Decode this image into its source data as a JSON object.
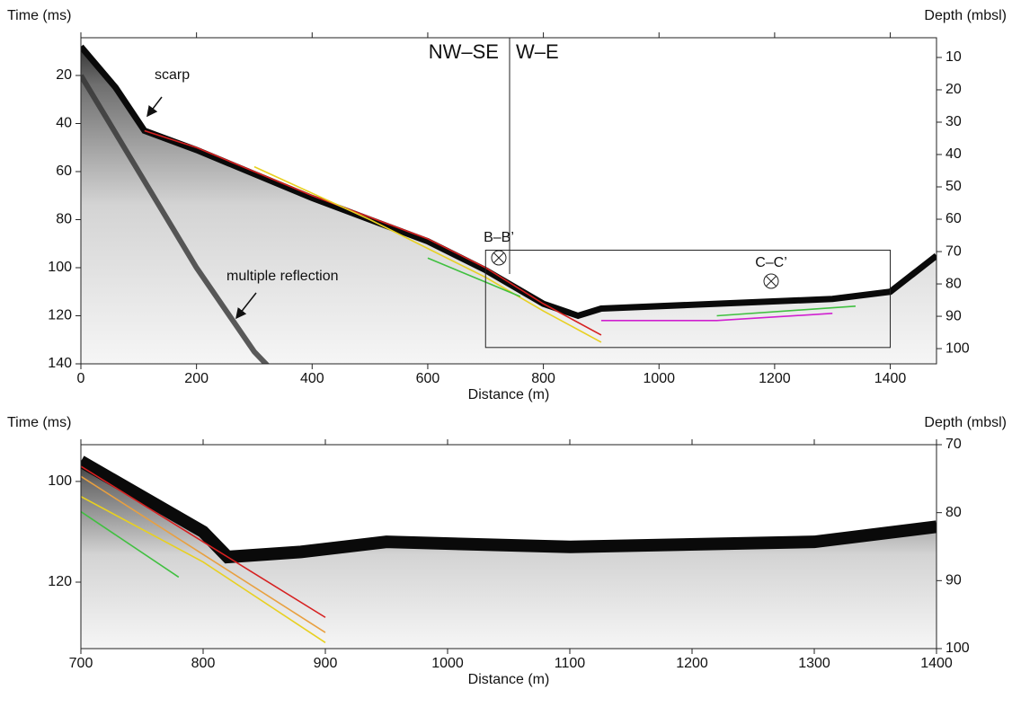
{
  "chart_data": [
    {
      "type": "seismic-profile",
      "x_label": "Distance (m)",
      "y_label": "Time (ms)",
      "y2_label": "Depth (mbsl)",
      "xlim": [
        0,
        1480
      ],
      "xticks": [
        0,
        200,
        400,
        600,
        800,
        1000,
        1200,
        1400
      ],
      "ylim": [
        4.3,
        140
      ],
      "yticks": [
        20,
        40,
        60,
        80,
        100,
        120,
        140
      ],
      "y2lim": [
        3.9,
        104.7
      ],
      "y2ticks": [
        10,
        20,
        30,
        40,
        50,
        60,
        70,
        80,
        90,
        100
      ],
      "y_inverted": true,
      "annotations": [
        "NW–SE",
        "W–E",
        "scarp",
        "multiple reflection",
        "B–B’",
        "C–C’"
      ],
      "series": [
        {
          "color": "#d62020",
          "x": [
            110,
            200,
            400,
            600,
            700,
            800,
            900
          ],
          "values": [
            43,
            50,
            70,
            88,
            100,
            115,
            128
          ]
        },
        {
          "color": "#e8d020",
          "x": [
            300,
            500,
            700,
            800,
            900
          ],
          "values": [
            58,
            80,
            104,
            118,
            131
          ]
        },
        {
          "color": "#40c040",
          "x": [
            600,
            700,
            760
          ],
          "values": [
            96,
            106,
            112
          ]
        },
        {
          "color": "#d020d0",
          "x": [
            900,
            1100,
            1300
          ],
          "values": [
            122,
            122,
            119
          ]
        },
        {
          "color": "#40c040",
          "x": [
            1100,
            1340
          ],
          "values": [
            120,
            116
          ]
        }
      ]
    },
    {
      "type": "seismic-profile",
      "x_label": "Distance (m)",
      "y_label": "Time (ms)",
      "y2_label": "Depth (mbsl)",
      "xlim": [
        700,
        1400
      ],
      "xticks": [
        700,
        800,
        900,
        1000,
        1100,
        1200,
        1300,
        1400
      ],
      "ylim": [
        92.7,
        133.2
      ],
      "yticks": [
        100,
        120
      ],
      "y2lim": [
        70,
        100
      ],
      "y2ticks": [
        70,
        80,
        90,
        100
      ],
      "y_inverted": true,
      "series": [
        {
          "color": "#d62020",
          "x": [
            700,
            900
          ],
          "values": [
            97,
            127
          ]
        },
        {
          "color": "#e8a040",
          "x": [
            700,
            900
          ],
          "values": [
            99,
            130
          ]
        },
        {
          "color": "#e8d020",
          "x": [
            700,
            800,
            900
          ],
          "values": [
            103,
            116,
            132
          ]
        },
        {
          "color": "#40c040",
          "x": [
            700,
            780
          ],
          "values": [
            106,
            119
          ]
        }
      ]
    }
  ]
}
